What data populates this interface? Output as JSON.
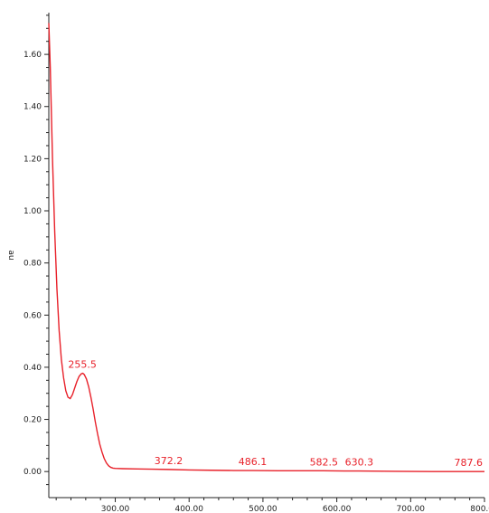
{
  "chart_data": {
    "type": "line",
    "title": "",
    "xlabel": "",
    "ylabel": "au",
    "xlim": [
      210,
      800
    ],
    "ylim": [
      -0.1,
      1.76
    ],
    "grid": false,
    "line_color": "#e8212a",
    "axis_color": "#222222",
    "x_ticks": [
      {
        "value": 300,
        "label": "300.00"
      },
      {
        "value": 400,
        "label": "400.00"
      },
      {
        "value": 500,
        "label": "500.00"
      },
      {
        "value": 600,
        "label": "600.00"
      },
      {
        "value": 700,
        "label": "700.00"
      },
      {
        "value": 800,
        "label": "800.00"
      }
    ],
    "y_ticks": [
      {
        "value": 0.0,
        "label": "0.00"
      },
      {
        "value": 0.2,
        "label": "0.20"
      },
      {
        "value": 0.4,
        "label": "0.40"
      },
      {
        "value": 0.6,
        "label": "0.60"
      },
      {
        "value": 0.8,
        "label": "0.80"
      },
      {
        "value": 1.0,
        "label": "1.00"
      },
      {
        "value": 1.2,
        "label": "1.20"
      },
      {
        "value": 1.4,
        "label": "1.40"
      },
      {
        "value": 1.6,
        "label": "1.60"
      }
    ],
    "series": [
      {
        "x": [
          210,
          212,
          215,
          218,
          221,
          224,
          227,
          230,
          233,
          236,
          239,
          242,
          245,
          248,
          251,
          254,
          256,
          258,
          261,
          264,
          267,
          270,
          273,
          276,
          279,
          282,
          285,
          288,
          291,
          294,
          297,
          300,
          310,
          330,
          350,
          372,
          400,
          430,
          460,
          486,
          520,
          560,
          582,
          610,
          630,
          680,
          730,
          787,
          800
        ],
        "y": [
          1.72,
          1.55,
          1.2,
          0.92,
          0.7,
          0.54,
          0.43,
          0.36,
          0.31,
          0.285,
          0.28,
          0.295,
          0.32,
          0.345,
          0.365,
          0.375,
          0.377,
          0.372,
          0.355,
          0.325,
          0.285,
          0.24,
          0.19,
          0.145,
          0.105,
          0.075,
          0.05,
          0.033,
          0.022,
          0.016,
          0.013,
          0.012,
          0.011,
          0.01,
          0.009,
          0.008,
          0.006,
          0.005,
          0.004,
          0.004,
          0.003,
          0.003,
          0.003,
          0.002,
          0.002,
          0.001,
          0.0,
          0.0,
          0.0
        ]
      }
    ],
    "annotations": [
      {
        "text": "255.5",
        "x": 255.5,
        "y": 0.377
      },
      {
        "text": "372.2",
        "x": 372.2,
        "y": 0.008
      },
      {
        "text": "486.1",
        "x": 486.1,
        "y": 0.004
      },
      {
        "text": "582.5",
        "x": 582.5,
        "y": 0.003
      },
      {
        "text": "630.3",
        "x": 630.3,
        "y": 0.002
      },
      {
        "text": "787.6",
        "x": 787.6,
        "y": 0.0
      }
    ]
  }
}
